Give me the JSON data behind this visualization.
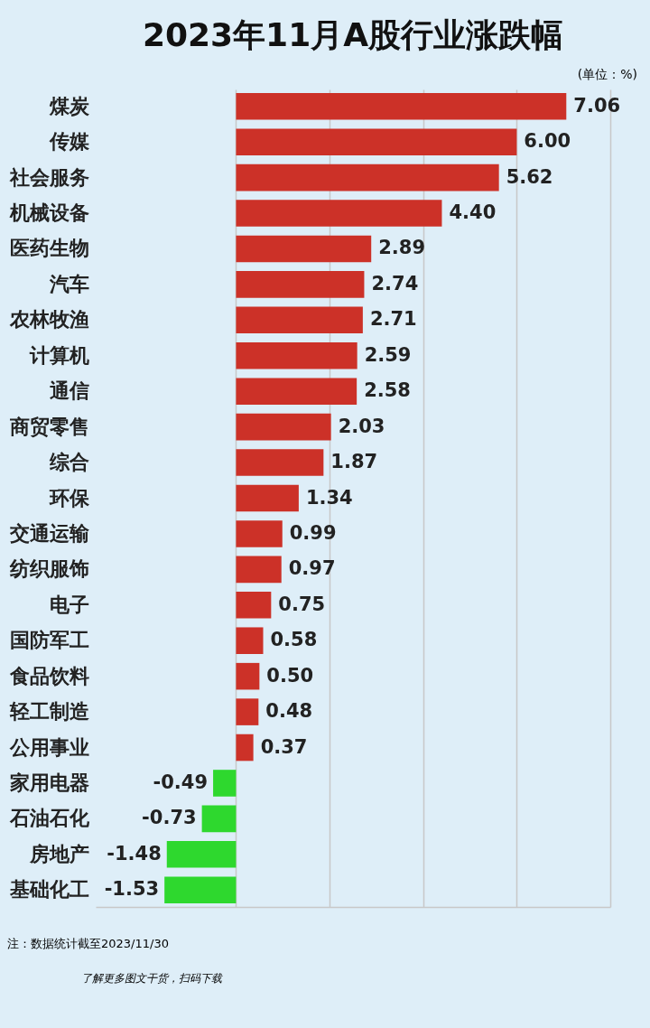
{
  "chart_data": {
    "type": "bar",
    "orientation": "horizontal",
    "title": "2023年11月A股行业涨跌幅",
    "categories": [
      "煤炭",
      "传媒",
      "社会服务",
      "机械设备",
      "医药生物",
      "汽车",
      "农林牧渔",
      "计算机",
      "通信",
      "商贸零售",
      "综合",
      "环保",
      "交通运输",
      "纺织服饰",
      "电子",
      "国防军工",
      "食品饮料",
      "轻工制造",
      "公用事业",
      "家用电器",
      "石油石化",
      "房地产",
      "基础化工"
    ],
    "values": [
      7.06,
      6.0,
      5.62,
      4.4,
      2.89,
      2.74,
      2.71,
      2.59,
      2.58,
      2.03,
      1.87,
      1.34,
      0.99,
      0.97,
      0.75,
      0.58,
      0.5,
      0.48,
      0.37,
      -0.49,
      -0.73,
      -1.48,
      -1.53
    ],
    "value_labels": [
      "7.06",
      "6.00",
      "5.62",
      "4.40",
      "2.89",
      "2.74",
      "2.71",
      "2.59",
      "2.58",
      "2.03",
      "1.87",
      "1.34",
      "0.99",
      "0.97",
      "0.75",
      "0.58",
      "0.50",
      "0.48",
      "0.37",
      "-0.49",
      "-0.73",
      "-1.48",
      "-1.53"
    ],
    "colors": [
      "#cc3128",
      "#cc3128",
      "#cc3128",
      "#cc3128",
      "#cc3128",
      "#cc3128",
      "#cc3128",
      "#cc3128",
      "#cc3128",
      "#cc3128",
      "#cc3128",
      "#cc3128",
      "#cc3128",
      "#cc3128",
      "#cc3128",
      "#cc3128",
      "#cc3128",
      "#cc3128",
      "#cc3128",
      "#2ed82e",
      "#2ed82e",
      "#2ed82e",
      "#2ed82e"
    ],
    "xlim": [
      -3,
      8
    ],
    "xticks": [
      {
        "value": 0,
        "label": null
      },
      {
        "value": 2,
        "label": null
      },
      {
        "value": 4,
        "label": null
      },
      {
        "value": 6,
        "label": null
      },
      {
        "value": 8,
        "label": null
      }
    ],
    "grid": "x",
    "tick_labels": "y",
    "annotations": [
      "(单位：%)",
      "注：数据统计截至2023/11/30",
      "了解更多图文干货，扫码下载"
    ]
  }
}
